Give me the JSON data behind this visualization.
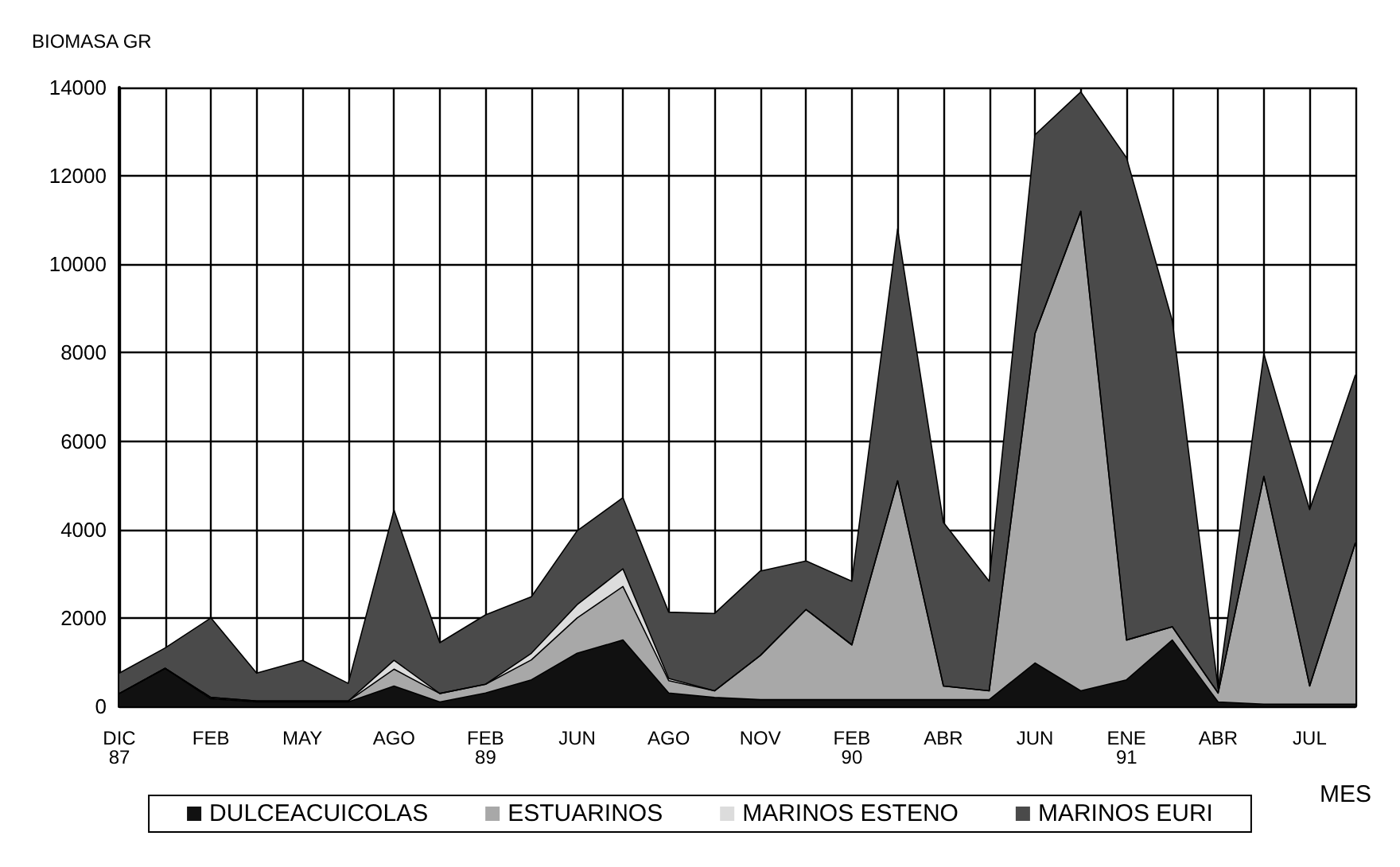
{
  "chart_data": {
    "type": "area",
    "stacked": true,
    "ylabel": "BIOMASA GR",
    "xlabel": "MES",
    "categories": [
      "DIC\n87",
      null,
      "FEB",
      null,
      "MAY",
      null,
      "AGO",
      null,
      "FEB\n89",
      null,
      "JUN",
      null,
      "AGO",
      null,
      "NOV",
      null,
      "FEB\n90",
      null,
      "ABR",
      null,
      "JUN",
      null,
      "ENE\n91",
      null,
      "ABR",
      null,
      "JUL",
      null
    ],
    "series": [
      {
        "name": "DULCEACUICOLAS",
        "color": "#111111",
        "values": [
          290,
          860,
          170,
          100,
          100,
          100,
          460,
          100,
          300,
          600,
          1200,
          1500,
          300,
          200,
          150,
          150,
          150,
          150,
          150,
          150,
          980,
          350,
          600,
          1500,
          100,
          50,
          50,
          50
        ]
      },
      {
        "name": "ESTUARINOS",
        "color": "#a8a8a8",
        "values": [
          0,
          0,
          30,
          20,
          20,
          20,
          380,
          190,
          200,
          450,
          800,
          1210,
          280,
          150,
          1000,
          2040,
          1240,
          4950,
          310,
          200,
          7450,
          10850,
          900,
          300,
          200,
          5150,
          410,
          3650
        ]
      },
      {
        "name": "MARINOS ESTENO",
        "color": "#dcdcdc",
        "values": [
          0,
          0,
          0,
          0,
          0,
          0,
          200,
          0,
          0,
          150,
          300,
          400,
          50,
          0,
          0,
          0,
          0,
          0,
          0,
          0,
          0,
          0,
          0,
          0,
          0,
          0,
          0,
          0
        ]
      },
      {
        "name": "MARINOS EURI",
        "color": "#4a4a4a",
        "values": [
          460,
          460,
          1800,
          630,
          920,
          400,
          3400,
          1150,
          1570,
          1280,
          1670,
          1610,
          1500,
          1750,
          1910,
          1100,
          1440,
          5700,
          3700,
          2480,
          4500,
          2700,
          10910,
          6920,
          100,
          2770,
          3990,
          3800
        ]
      }
    ],
    "ylim": [
      0,
      14000
    ],
    "yticks": [
      0,
      2000,
      4000,
      6000,
      8000,
      10000,
      12000,
      14000
    ],
    "grid": true,
    "legend": "bottom"
  }
}
